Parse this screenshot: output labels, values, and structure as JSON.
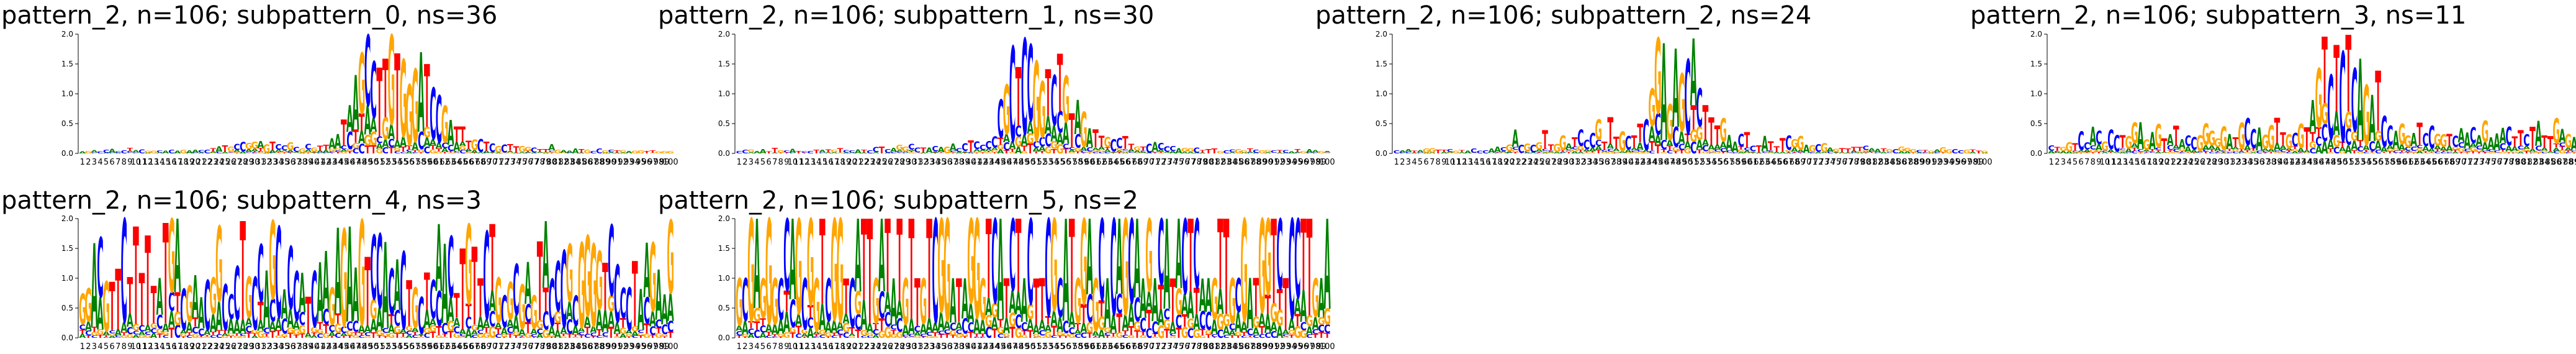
{
  "figure": {
    "panels": [
      {
        "title": "pattern_2, n=106; subpattern_0, ns=36"
      },
      {
        "title": "pattern_2, n=106; subpattern_1, ns=30"
      },
      {
        "title": "pattern_2, n=106; subpattern_2, ns=24"
      },
      {
        "title": "pattern_2, n=106; subpattern_3, ns=11"
      },
      {
        "title": "pattern_2, n=106; subpattern_4, ns=3"
      },
      {
        "title": "pattern_2, n=106; subpattern_5, ns=2"
      }
    ]
  },
  "colors": {
    "A": "#008000",
    "C": "#0000ff",
    "G": "#ffa500",
    "T": "#ff0000"
  },
  "chart_data": [
    {
      "type": "bar",
      "subtype": "sequence-logo (stacked)",
      "title": "pattern_2, n=106; subpattern_0, ns=36",
      "xlabel": "",
      "ylabel": "",
      "ylim": [
        0,
        2.0
      ],
      "yticks": [
        "0.0",
        "0.5",
        "1.0",
        "1.5",
        "2.0"
      ],
      "positions": 100,
      "max_information_profile": [
        0.05,
        0.05,
        0.06,
        0.05,
        0.07,
        0.08,
        0.05,
        0.06,
        0.1,
        0.06,
        0.08,
        0.05,
        0.07,
        0.06,
        0.06,
        0.07,
        0.06,
        0.08,
        0.07,
        0.07,
        0.06,
        0.07,
        0.1,
        0.13,
        0.14,
        0.11,
        0.16,
        0.2,
        0.17,
        0.2,
        0.21,
        0.16,
        0.2,
        0.16,
        0.13,
        0.18,
        0.11,
        0.09,
        0.16,
        0.1,
        0.13,
        0.15,
        0.25,
        0.33,
        0.57,
        0.81,
        1.32,
        1.69,
        1.99,
        1.55,
        1.44,
        1.59,
        1.99,
        1.68,
        1.58,
        1.16,
        1.42,
        1.7,
        1.5,
        1.1,
        0.98,
        0.8,
        0.56,
        0.45,
        0.45,
        0.21,
        0.24,
        0.24,
        0.2,
        0.17,
        0.13,
        0.16,
        0.16,
        0.12,
        0.13,
        0.11,
        0.1,
        0.08,
        0.08,
        0.15,
        0.07,
        0.07,
        0.06,
        0.09,
        0.08,
        0.07,
        0.06,
        0.1,
        0.06,
        0.07,
        0.05,
        0.06,
        0.05,
        0.05,
        0.07,
        0.05,
        0.06,
        0.05,
        0.05,
        0.05
      ]
    },
    {
      "type": "bar",
      "subtype": "sequence-logo (stacked)",
      "title": "pattern_2, n=106; subpattern_1, ns=30",
      "xlabel": "",
      "ylabel": "",
      "ylim": [
        0,
        2.0
      ],
      "yticks": [
        "0.0",
        "0.5",
        "1.0",
        "1.5",
        "2.0"
      ],
      "positions": 100,
      "max_information_profile": [
        0.05,
        0.07,
        0.08,
        0.05,
        0.09,
        0.04,
        0.1,
        0.07,
        0.06,
        0.09,
        0.05,
        0.05,
        0.06,
        0.07,
        0.07,
        0.08,
        0.07,
        0.1,
        0.06,
        0.06,
        0.08,
        0.07,
        0.06,
        0.11,
        0.13,
        0.08,
        0.1,
        0.14,
        0.12,
        0.16,
        0.11,
        0.1,
        0.1,
        0.13,
        0.11,
        0.13,
        0.17,
        0.1,
        0.17,
        0.22,
        0.2,
        0.15,
        0.21,
        0.29,
        0.9,
        1.16,
        1.8,
        1.45,
        1.93,
        1.83,
        1.55,
        1.21,
        1.41,
        1.32,
        1.67,
        1.31,
        0.67,
        0.9,
        0.7,
        0.42,
        0.4,
        0.3,
        0.27,
        0.24,
        0.26,
        0.29,
        0.16,
        0.12,
        0.11,
        0.17,
        0.2,
        0.18,
        0.12,
        0.14,
        0.1,
        0.1,
        0.1,
        0.11,
        0.06,
        0.09,
        0.09,
        0.06,
        0.07,
        0.08,
        0.09,
        0.07,
        0.09,
        0.07,
        0.06,
        0.06,
        0.06,
        0.06,
        0.06,
        0.04,
        0.08,
        0.05,
        0.08,
        0.06,
        0.05,
        0.05
      ]
    },
    {
      "type": "bar",
      "subtype": "sequence-logo (stacked)",
      "title": "pattern_2, n=106; subpattern_2, ns=24",
      "xlabel": "",
      "ylabel": "",
      "ylim": [
        0,
        2.0
      ],
      "yticks": [
        "0.0",
        "0.5",
        "1.0",
        "1.5",
        "2.0"
      ],
      "positions": 100,
      "max_information_profile": [
        0.06,
        0.06,
        0.08,
        0.05,
        0.06,
        0.09,
        0.1,
        0.07,
        0.07,
        0.08,
        0.06,
        0.06,
        0.07,
        0.1,
        0.06,
        0.07,
        0.09,
        0.12,
        0.11,
        0.16,
        0.4,
        0.15,
        0.17,
        0.15,
        0.19,
        0.39,
        0.15,
        0.17,
        0.3,
        0.17,
        0.27,
        0.4,
        0.23,
        0.34,
        0.57,
        0.2,
        0.61,
        0.28,
        0.37,
        0.3,
        0.3,
        0.5,
        0.58,
        1.09,
        1.94,
        1.85,
        0.83,
        1.76,
        1.34,
        1.58,
        1.93,
        1.09,
        0.81,
        0.61,
        0.47,
        0.59,
        0.32,
        0.21,
        0.33,
        0.36,
        0.13,
        0.15,
        0.3,
        0.2,
        0.13,
        0.27,
        0.3,
        0.24,
        0.29,
        0.15,
        0.15,
        0.16,
        0.17,
        0.11,
        0.09,
        0.1,
        0.09,
        0.12,
        0.12,
        0.13,
        0.09,
        0.08,
        0.09,
        0.08,
        0.09,
        0.12,
        0.1,
        0.08,
        0.06,
        0.07,
        0.06,
        0.07,
        0.12,
        0.08,
        0.09,
        0.06,
        0.07,
        0.07,
        0.06,
        0.05
      ]
    },
    {
      "type": "bar",
      "subtype": "sequence-logo (stacked)",
      "title": "pattern_2, n=106; subpattern_3, ns=11",
      "xlabel": "",
      "ylabel": "",
      "ylim": [
        0,
        2.0
      ],
      "yticks": [
        "0.0",
        "0.5",
        "1.0",
        "1.5",
        "2.0"
      ],
      "positions": 100,
      "max_information_profile": [
        0.15,
        0.11,
        0.12,
        0.2,
        0.17,
        0.37,
        0.19,
        0.45,
        0.38,
        0.2,
        0.4,
        0.31,
        0.3,
        0.3,
        0.52,
        0.52,
        0.23,
        0.36,
        0.49,
        0.26,
        0.32,
        0.47,
        0.24,
        0.3,
        0.28,
        0.31,
        0.5,
        0.38,
        0.25,
        0.45,
        0.32,
        0.27,
        0.52,
        0.59,
        0.41,
        0.45,
        0.31,
        0.48,
        0.6,
        0.35,
        0.32,
        0.34,
        0.5,
        0.44,
        0.89,
        1.43,
        1.96,
        1.32,
        1.82,
        1.71,
        1.99,
        1.43,
        1.59,
        1.15,
        0.98,
        1.39,
        0.63,
        0.47,
        0.38,
        0.5,
        0.3,
        0.34,
        0.51,
        0.34,
        0.46,
        0.33,
        0.32,
        0.33,
        0.3,
        0.42,
        0.35,
        0.44,
        0.31,
        0.55,
        0.27,
        0.34,
        0.43,
        0.45,
        0.28,
        0.39,
        0.32,
        0.44,
        0.55,
        0.3,
        0.3,
        0.59,
        0.41,
        0.32,
        0.28,
        0.36,
        0.24,
        0.33,
        0.22,
        0.34,
        0.34,
        0.65,
        0.49,
        0.53,
        0.39,
        0.73
      ]
    },
    {
      "type": "bar",
      "subtype": "sequence-logo (stacked)",
      "title": "pattern_2, n=106; subpattern_4, ns=3",
      "xlabel": "",
      "ylabel": "",
      "ylim": [
        0,
        2.0
      ],
      "yticks": [
        "0.0",
        "0.5",
        "1.0",
        "1.5",
        "2.0"
      ],
      "positions": 100,
      "max_information_profile": [
        0.74,
        0.83,
        1.59,
        1.69,
        0.95,
        0.94,
        1.16,
        2.0,
        1.02,
        1.87,
        1.09,
        1.72,
        0.88,
        1.0,
        1.93,
        2.0,
        2.0,
        0.83,
        0.88,
        1.05,
        0.68,
        0.97,
        1.01,
        1.88,
        0.9,
        0.74,
        1.2,
        1.96,
        1.03,
        1.02,
        1.57,
        1.13,
        1.97,
        1.87,
        0.82,
        1.54,
        1.12,
        1.09,
        0.7,
        1.12,
        1.27,
        1.46,
        0.84,
        1.85,
        1.83,
        1.87,
        1.18,
        1.98,
        1.36,
        1.73,
        1.75,
        1.61,
        1.16,
        1.32,
        1.45,
        0.97,
        0.85,
        0.69,
        1.1,
        0.97,
        1.91,
        1.58,
        1.71,
        0.75,
        1.5,
        1.91,
        1.53,
        1.0,
        1.79,
        1.91,
        1.01,
        0.71,
        0.94,
        1.24,
        0.9,
        1.27,
        0.71,
        1.62,
        1.96,
        0.99,
        1.29,
        1.47,
        1.58,
        0.71,
        1.6,
        1.72,
        1.58,
        1.46,
        1.26,
        1.9,
        1.23,
        0.84,
        0.85,
        1.29,
        0.82,
        1.6,
        1.6,
        1.15,
        0.73,
        1.98
      ]
    },
    {
      "type": "bar",
      "subtype": "sequence-logo (stacked)",
      "title": "pattern_2, n=106; subpattern_5, ns=2",
      "xlabel": "",
      "ylabel": "",
      "ylim": [
        0,
        2.0
      ],
      "yticks": [
        "0.0",
        "0.5",
        "1.0",
        "1.5",
        "2.0"
      ],
      "positions": 100,
      "max_information_profile": [
        1.0,
        1.0,
        2.0,
        2.0,
        1.0,
        2.0,
        1.0,
        1.0,
        2.0,
        2.0,
        2.0,
        1.0,
        2.0,
        1.0,
        2.0,
        1.0,
        2.0,
        2.0,
        1.0,
        1.0,
        2.0,
        2.0,
        2.0,
        1.0,
        2.0,
        2.0,
        1.0,
        2.0,
        1.0,
        2.0,
        1.0,
        1.0,
        2.0,
        2.0,
        2.0,
        2.0,
        1.0,
        1.0,
        1.0,
        2.0,
        2.0,
        1.0,
        2.0,
        2.0,
        2.0,
        1.0,
        2.0,
        2.0,
        1.0,
        2.0,
        1.0,
        1.0,
        2.0,
        2.0,
        1.0,
        2.0,
        2.0,
        1.0,
        2.0,
        2.0,
        1.0,
        2.0,
        1.0,
        2.0,
        2.0,
        2.0,
        2.0,
        2.0,
        1.0,
        2.0,
        1.0,
        2.0,
        2.0,
        1.0,
        2.0,
        2.0,
        2.0,
        2.0,
        1.0,
        1.0,
        1.0,
        2.0,
        2.0,
        1.0,
        1.0,
        2.0,
        1.0,
        1.0,
        2.0,
        2.0,
        2.0,
        2.0,
        1.0,
        2.0,
        2.0,
        2.0,
        2.0,
        1.0,
        1.0,
        2.0
      ]
    }
  ]
}
